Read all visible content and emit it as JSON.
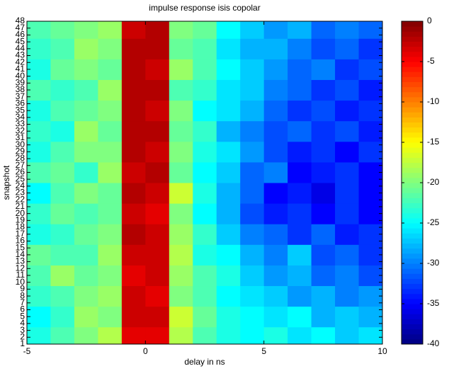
{
  "chart_data": {
    "type": "heatmap",
    "title": "impulse response isis copolar",
    "x_label": "delay in ns",
    "y_label": "snapshot",
    "x": [
      -4.5,
      -3.5,
      -2.5,
      -1.5,
      -0.5,
      0.5,
      1.5,
      2.5,
      3.5,
      4.5,
      5.5,
      6.5,
      7.5,
      8.5,
      9.5
    ],
    "y": [
      2,
      5,
      8,
      11,
      14,
      17,
      20,
      23,
      26,
      29,
      32,
      35,
      38,
      41,
      44,
      47
    ],
    "z": [
      [
        -24,
        -22,
        -20,
        -18,
        -4,
        -4,
        -18,
        -22,
        -24,
        -25,
        -24,
        -26,
        -25,
        -27,
        -26
      ],
      [
        -25,
        -23,
        -19,
        -20,
        -3,
        -3,
        -17,
        -21,
        -24,
        -25,
        -26,
        -25,
        -28,
        -27,
        -28
      ],
      [
        -23,
        -22,
        -20,
        -19,
        -3,
        -4,
        -20,
        -22,
        -25,
        -26,
        -27,
        -29,
        -28,
        -30,
        -29
      ],
      [
        -22,
        -19,
        -21,
        -20,
        -4,
        -3,
        -19,
        -22,
        -24,
        -27,
        -29,
        -28,
        -31,
        -30,
        -32
      ],
      [
        -21,
        -22,
        -22,
        -19,
        -3,
        -3,
        -18,
        -24,
        -25,
        -28,
        -30,
        -27,
        -32,
        -31,
        -33
      ],
      [
        -24,
        -23,
        -21,
        -20,
        -2,
        -3,
        -19,
        -23,
        -27,
        -30,
        -31,
        -33,
        -31,
        -34,
        -33
      ],
      [
        -23,
        -21,
        -22,
        -21,
        -3,
        -4,
        -20,
        -25,
        -28,
        -32,
        -34,
        -33,
        -35,
        -33,
        -35
      ],
      [
        -25,
        -22,
        -20,
        -21,
        -2,
        -3,
        -17,
        -24,
        -28,
        -31,
        -35,
        -34,
        -36,
        -33,
        -35
      ],
      [
        -22,
        -21,
        -23,
        -19,
        -3,
        -2,
        -21,
        -25,
        -27,
        -31,
        -30,
        -35,
        -34,
        -33,
        -35
      ],
      [
        -24,
        -22,
        -20,
        -20,
        -2,
        -3,
        -20,
        -24,
        -26,
        -29,
        -32,
        -34,
        -33,
        -35,
        -33
      ],
      [
        -23,
        -24,
        -19,
        -21,
        -2,
        -2,
        -21,
        -23,
        -28,
        -30,
        -32,
        -31,
        -33,
        -32,
        -34
      ],
      [
        -24,
        -22,
        -21,
        -20,
        -2,
        -3,
        -20,
        -25,
        -26,
        -28,
        -31,
        -33,
        -32,
        -34,
        -33
      ],
      [
        -22,
        -23,
        -22,
        -19,
        -2,
        -2,
        -22,
        -23,
        -26,
        -27,
        -30,
        -31,
        -33,
        -32,
        -34
      ],
      [
        -24,
        -21,
        -20,
        -21,
        -2,
        -3,
        -19,
        -22,
        -25,
        -27,
        -29,
        -31,
        -30,
        -33,
        -32
      ],
      [
        -23,
        -22,
        -19,
        -20,
        -2,
        -2,
        -21,
        -22,
        -26,
        -28,
        -28,
        -30,
        -32,
        -31,
        -33
      ],
      [
        -22,
        -21,
        -20,
        -19,
        -3,
        -2,
        -20,
        -21,
        -25,
        -27,
        -29,
        -28,
        -31,
        -30,
        -31
      ]
    ],
    "xlim": [
      -5,
      10
    ],
    "xticks": [
      -5,
      0,
      5,
      10
    ],
    "ylim": [
      1,
      48
    ],
    "yticks": [
      1,
      2,
      3,
      4,
      5,
      6,
      7,
      8,
      9,
      10,
      11,
      12,
      13,
      14,
      15,
      16,
      17,
      18,
      19,
      20,
      21,
      22,
      23,
      24,
      25,
      26,
      27,
      28,
      29,
      30,
      31,
      32,
      33,
      34,
      35,
      36,
      37,
      38,
      39,
      40,
      41,
      42,
      43,
      44,
      45,
      46,
      47,
      48
    ],
    "clim": [
      -40,
      0
    ],
    "cticks": [
      0,
      -5,
      -10,
      -15,
      -20,
      -25,
      -30,
      -35,
      -40
    ],
    "colormap": "jet"
  }
}
